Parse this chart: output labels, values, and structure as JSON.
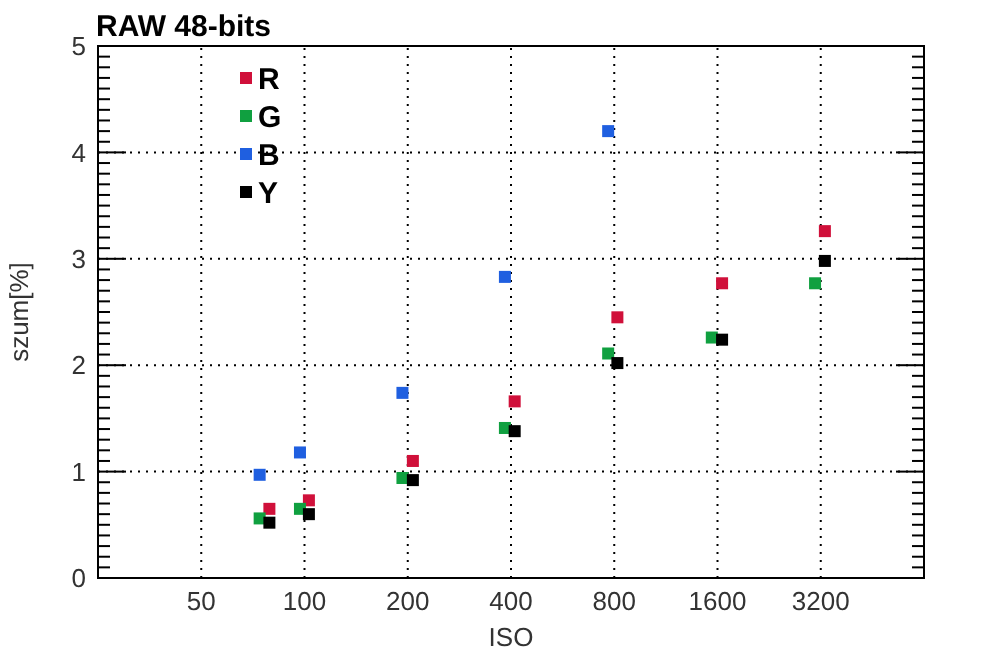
{
  "chart_data": {
    "type": "scatter",
    "title": "RAW 48-bits",
    "xlabel": "ISO",
    "ylabel": "szum[%]",
    "log": "x",
    "xlim": [
      25,
      6400
    ],
    "xticks": [
      50,
      100,
      200,
      400,
      800,
      1600,
      3200
    ],
    "ylim": [
      0,
      5
    ],
    "yticks": [
      0,
      1,
      2,
      3,
      4,
      5
    ],
    "grid": true,
    "legend": "top left",
    "marker": "square",
    "series": [
      {
        "name": "R",
        "color": "#d0103a",
        "x": [
          79,
          103,
          207,
          410,
          817,
          1650,
          3290
        ],
        "values": [
          0.65,
          0.73,
          1.1,
          1.66,
          2.45,
          2.77,
          3.26
        ]
      },
      {
        "name": "G",
        "color": "#10a040",
        "x": [
          74,
          97,
          193,
          384,
          768,
          1540,
          3080
        ],
        "values": [
          0.56,
          0.65,
          0.94,
          1.41,
          2.11,
          2.26,
          2.77
        ]
      },
      {
        "name": "B",
        "color": "#1f5fe0",
        "x": [
          74,
          97,
          193,
          384,
          768
        ],
        "values": [
          0.97,
          1.18,
          1.74,
          2.83,
          4.2
        ]
      },
      {
        "name": "Y",
        "color": "#000000",
        "x": [
          79,
          103,
          207,
          410,
          817,
          1650,
          3290
        ],
        "values": [
          0.52,
          0.6,
          0.92,
          1.38,
          2.02,
          2.24,
          2.98
        ]
      }
    ]
  }
}
